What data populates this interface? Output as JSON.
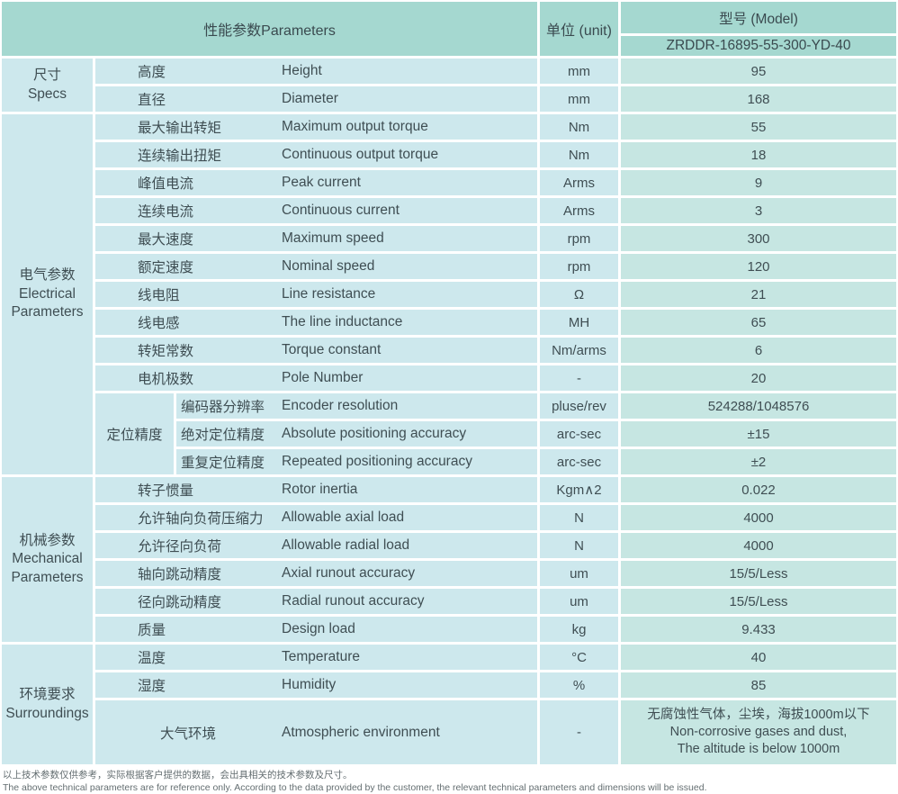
{
  "header": {
    "parameters_label": "性能参数Parameters",
    "unit_label": "单位 (unit)",
    "model_label": "型号 (Model)",
    "model_value": "ZRDDR-16895-55-300-YD-40"
  },
  "groups": [
    {
      "category_zh": "尺寸",
      "category_en": "Specs",
      "rows": [
        {
          "zh": "高度",
          "en": "Height",
          "unit": "mm",
          "value": "95"
        },
        {
          "zh": "直径",
          "en": "Diameter",
          "unit": "mm",
          "value": "168"
        }
      ]
    },
    {
      "category_zh": "电气参数",
      "category_en": "Electrical Parameters",
      "rows": [
        {
          "zh": "最大输出转矩",
          "en": "Maximum output torque",
          "unit": "Nm",
          "value": "55"
        },
        {
          "zh": "连续输出扭矩",
          "en": "Continuous output torque",
          "unit": "Nm",
          "value": "18"
        },
        {
          "zh": "峰值电流",
          "en": "Peak current",
          "unit": "Arms",
          "value": "9"
        },
        {
          "zh": "连续电流",
          "en": "Continuous current",
          "unit": "Arms",
          "value": "3"
        },
        {
          "zh": "最大速度",
          "en": "Maximum speed",
          "unit": "rpm",
          "value": "300"
        },
        {
          "zh": "额定速度",
          "en": "Nominal speed",
          "unit": "rpm",
          "value": "120"
        },
        {
          "zh": "线电阻",
          "en": "Line resistance",
          "unit": "Ω",
          "value": "21"
        },
        {
          "zh": "线电感",
          "en": "The line inductance",
          "unit": "MH",
          "value": "65"
        },
        {
          "zh": "转矩常数",
          "en": "Torque constant",
          "unit": "Nm/arms",
          "value": "6"
        },
        {
          "zh": "电机极数",
          "en": "Pole Number",
          "unit": "-",
          "value": "20"
        }
      ],
      "subgroup": {
        "label": "定位精度",
        "rows": [
          {
            "zh": "编码器分辨率",
            "en": "Encoder resolution",
            "unit": "pluse/rev",
            "value": "524288/1048576"
          },
          {
            "zh": "绝对定位精度",
            "en": "Absolute positioning accuracy",
            "unit": "arc-sec",
            "value": "±15"
          },
          {
            "zh": "重复定位精度",
            "en": "Repeated positioning accuracy",
            "unit": "arc-sec",
            "value": "±2"
          }
        ]
      }
    },
    {
      "category_zh": "机械参数",
      "category_en": "Mechanical Parameters",
      "rows": [
        {
          "zh": "转子惯量",
          "en": "Rotor inertia",
          "unit": "Kgm∧2",
          "value": "0.022"
        },
        {
          "zh": "允许轴向负荷压缩力",
          "en": "Allowable axial load",
          "unit": "N",
          "value": "4000"
        },
        {
          "zh": "允许径向负荷",
          "en": "Allowable radial load",
          "unit": "N",
          "value": "4000"
        },
        {
          "zh": "轴向跳动精度",
          "en": "Axial runout accuracy",
          "unit": "um",
          "value": "15/5/Less"
        },
        {
          "zh": "径向跳动精度",
          "en": "Radial runout accuracy",
          "unit": "um",
          "value": "15/5/Less"
        },
        {
          "zh": "质量",
          "en": "Design load",
          "unit": "kg",
          "value": "9.433"
        }
      ]
    },
    {
      "category_zh": "环境要求",
      "category_en": "Surroundings",
      "rows": [
        {
          "zh": "温度",
          "en": "Temperature",
          "unit": "°C",
          "value": "40"
        },
        {
          "zh": "湿度",
          "en": "Humidity",
          "unit": "%",
          "value": "85"
        },
        {
          "zh": "大气环境",
          "en": "Atmospheric environment",
          "unit": "-",
          "value_lines": {
            "0": "无腐蚀性气体，尘埃，海拔1000m以下",
            "1": "Non-corrosive gases and dust,",
            "2": "The altitude is below 1000m"
          }
        }
      ]
    }
  ],
  "footer": {
    "note_zh": "以上技术参数仅供参考，实际根据客户提供的数据，会出具相关的技术参数及尺寸。",
    "note_en": "The above technical parameters are for reference only. According to the data provided by the customer, the relevant technical parameters and dimensions will be issued."
  }
}
